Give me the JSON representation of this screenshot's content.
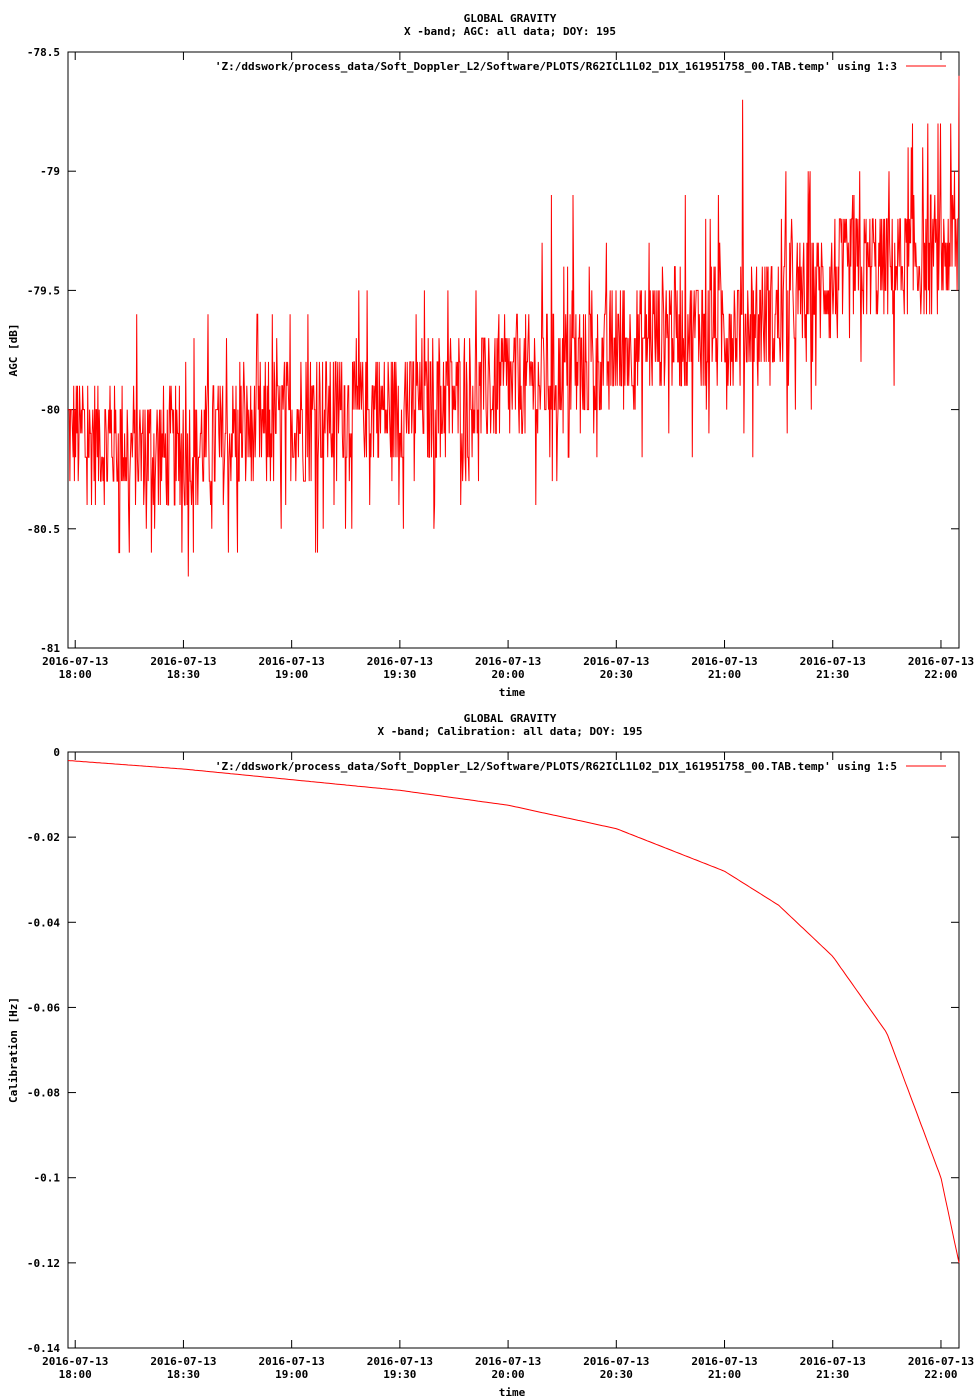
{
  "chart_data": [
    {
      "type": "line",
      "title": "GLOBAL GRAVITY",
      "subtitle": "X -band; AGC: all data; DOY: 195",
      "xlabel": "time",
      "ylabel": "AGC [dB]",
      "ylim": [
        -81,
        -78.5
      ],
      "yticks": [
        "-78.5",
        "-79",
        "-79.5",
        "-80",
        "-80.5",
        "-81"
      ],
      "xtick_dates": [
        "2016-07-13",
        "2016-07-13",
        "2016-07-13",
        "2016-07-13",
        "2016-07-13",
        "2016-07-13",
        "2016-07-13",
        "2016-07-13",
        "2016-07-13"
      ],
      "xtick_times": [
        "18:00",
        "18:30",
        "19:00",
        "19:30",
        "20:00",
        "20:30",
        "21:00",
        "21:30",
        "22:00"
      ],
      "xlim_minutes": [
        17.98,
        18.0,
        22.09
      ],
      "x_start": "2016-07-13 17:58",
      "x_end": "2016-07-13 22:05",
      "grid": false,
      "legend_position": "top-right",
      "series": [
        {
          "name": "'Z:/ddswork/process_data/Soft_Doppler_L2/Software/PLOTS/R62ICL1L02_D1X_161951758_00.TAB.temp' using 1:3",
          "color": "#ff0000",
          "trend": {
            "x": [
              "17:58",
              "18:15",
              "18:30",
              "18:45",
              "19:00",
              "19:15",
              "19:30",
              "19:45",
              "20:00",
              "20:15",
              "20:30",
              "20:45",
              "21:00",
              "21:15",
              "21:30",
              "21:45",
              "22:00",
              "22:05"
            ],
            "y": [
              -80.1,
              -80.15,
              -80.2,
              -80.1,
              -80.05,
              -80.0,
              -80.0,
              -79.95,
              -79.9,
              -79.85,
              -79.75,
              -79.65,
              -79.65,
              -79.6,
              -79.45,
              -79.4,
              -79.35,
              -79.3
            ]
          },
          "noise_amplitude": 0.25,
          "peaks": [
            {
              "x": "21:05",
              "y": -78.7
            },
            {
              "x": "22:05",
              "y": -78.6
            },
            {
              "x": "20:12",
              "y": -79.1
            },
            {
              "x": "20:18",
              "y": -79.1
            },
            {
              "x": "18:45",
              "y": -80.6
            },
            {
              "x": "18:15",
              "y": -80.6
            }
          ]
        }
      ]
    },
    {
      "type": "line",
      "title": "GLOBAL GRAVITY",
      "subtitle": "X -band; Calibration: all data; DOY: 195",
      "xlabel": "time",
      "ylabel": "Calibration [Hz]",
      "ylim": [
        -0.14,
        0
      ],
      "yticks": [
        "0",
        "-0.02",
        "-0.04",
        "-0.06",
        "-0.08",
        "-0.1",
        "-0.12",
        "-0.14"
      ],
      "xtick_dates": [
        "2016-07-13",
        "2016-07-13",
        "2016-07-13",
        "2016-07-13",
        "2016-07-13",
        "2016-07-13",
        "2016-07-13",
        "2016-07-13",
        "2016-07-13"
      ],
      "xtick_times": [
        "18:00",
        "18:30",
        "19:00",
        "19:30",
        "20:00",
        "20:30",
        "21:00",
        "21:30",
        "22:00"
      ],
      "x_start": "2016-07-13 17:58",
      "x_end": "2016-07-13 22:05",
      "grid": false,
      "legend_position": "top-right",
      "series": [
        {
          "name": "'Z:/ddswork/process_data/Soft_Doppler_L2/Software/PLOTS/R62ICL1L02_D1X_161951758_00.TAB.temp' using 1:5",
          "color": "#ff0000",
          "x": [
            "17:58",
            "18:30",
            "19:00",
            "19:30",
            "20:00",
            "20:30",
            "21:00",
            "21:15",
            "21:30",
            "21:45",
            "22:00",
            "22:05"
          ],
          "y": [
            -0.002,
            -0.004,
            -0.0065,
            -0.009,
            -0.0125,
            -0.018,
            -0.028,
            -0.036,
            -0.048,
            -0.066,
            -0.1,
            -0.12
          ]
        }
      ]
    }
  ]
}
